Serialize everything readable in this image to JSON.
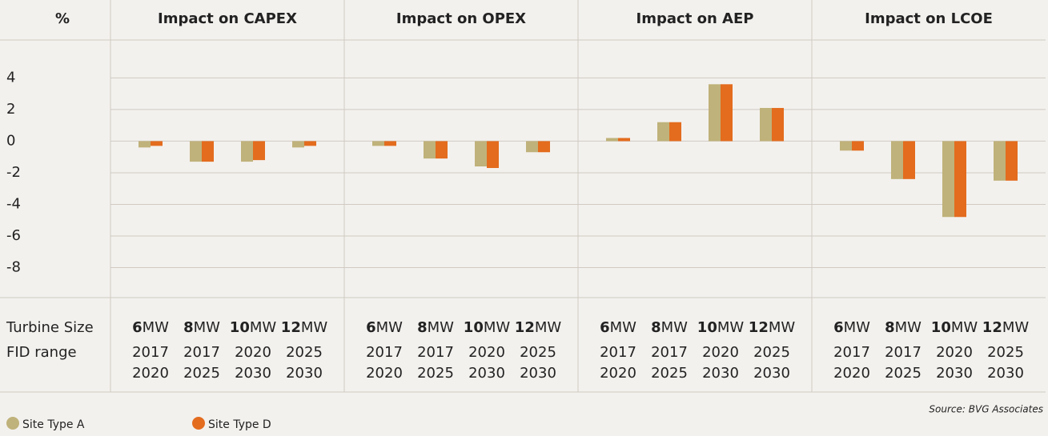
{
  "axis_label": "%",
  "row_labels": [
    "Turbine Size",
    "FID range"
  ],
  "groups": [
    {
      "size": "6",
      "unit": "MW",
      "fid_from": "2017",
      "fid_to": "2020"
    },
    {
      "size": "8",
      "unit": "MW",
      "fid_from": "2017",
      "fid_to": "2025"
    },
    {
      "size": "10",
      "unit": "MW",
      "fid_from": "2020",
      "fid_to": "2030"
    },
    {
      "size": "12",
      "unit": "MW",
      "fid_from": "2025",
      "fid_to": "2030"
    }
  ],
  "source": "Source: BVG Associates",
  "chart_data": [
    {
      "type": "bar",
      "title": "Impact on CAPEX",
      "ylim": [
        -9.9,
        6.4
      ],
      "yticks": [
        4,
        2,
        0,
        -2,
        -4,
        -6,
        -8
      ],
      "grid": true,
      "series": [
        {
          "name": "Site Type A",
          "color": "#bfb27a",
          "values": [
            -0.4,
            -1.3,
            -1.3,
            -0.4
          ]
        },
        {
          "name": "Site Type D",
          "color": "#e36c1e",
          "values": [
            -0.3,
            -1.3,
            -1.2,
            -0.3
          ]
        }
      ]
    },
    {
      "type": "bar",
      "title": "Impact on OPEX",
      "ylim": [
        -9.9,
        6.4
      ],
      "yticks": [
        4,
        2,
        0,
        -2,
        -4,
        -6,
        -8
      ],
      "grid": true,
      "series": [
        {
          "name": "Site Type A",
          "color": "#bfb27a",
          "values": [
            -0.3,
            -1.1,
            -1.6,
            -0.7
          ]
        },
        {
          "name": "Site Type D",
          "color": "#e36c1e",
          "values": [
            -0.3,
            -1.1,
            -1.7,
            -0.7
          ]
        }
      ]
    },
    {
      "type": "bar",
      "title": "Impact on AEP",
      "ylim": [
        -9.9,
        6.4
      ],
      "yticks": [
        4,
        2,
        0,
        -2,
        -4,
        -6,
        -8
      ],
      "grid": true,
      "series": [
        {
          "name": "Site Type A",
          "color": "#bfb27a",
          "values": [
            0.2,
            1.2,
            3.6,
            2.1
          ]
        },
        {
          "name": "Site Type D",
          "color": "#e36c1e",
          "values": [
            0.2,
            1.2,
            3.6,
            2.1
          ]
        }
      ]
    },
    {
      "type": "bar",
      "title": "Impact on LCOE",
      "ylim": [
        -9.9,
        6.4
      ],
      "yticks": [
        4,
        2,
        0,
        -2,
        -4,
        -6,
        -8
      ],
      "grid": true,
      "series": [
        {
          "name": "Site Type A",
          "color": "#bfb27a",
          "values": [
            -0.6,
            -2.4,
            -4.8,
            -2.5
          ]
        },
        {
          "name": "Site Type D",
          "color": "#e36c1e",
          "values": [
            -0.6,
            -2.4,
            -4.8,
            -2.5
          ]
        }
      ]
    }
  ]
}
